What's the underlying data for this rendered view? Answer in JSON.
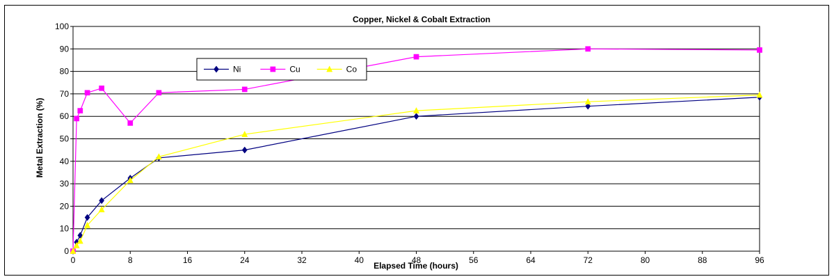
{
  "chart_data": {
    "type": "line",
    "title": "Copper, Nickel & Cobalt Extraction",
    "xlabel": "Elapsed Time (hours)",
    "ylabel": "Metal Extraction (%)",
    "xlim": [
      0,
      96
    ],
    "ylim": [
      0,
      100
    ],
    "xticks": [
      0,
      8,
      16,
      24,
      32,
      40,
      48,
      56,
      64,
      72,
      80,
      88,
      96
    ],
    "yticks": [
      0,
      10,
      20,
      30,
      40,
      50,
      60,
      70,
      80,
      90,
      100
    ],
    "grid": "vertical",
    "legend_placement": "top-left",
    "series": [
      {
        "name": "Ni",
        "color": "#000080",
        "marker": "diamond",
        "x": [
          0,
          0.5,
          1,
          2,
          4,
          8,
          12,
          24,
          48,
          72,
          96
        ],
        "y": [
          0,
          4,
          7,
          15,
          22.5,
          32.5,
          41.5,
          45,
          60,
          64.5,
          68.5
        ]
      },
      {
        "name": "Cu",
        "color": "#ff00ff",
        "marker": "square",
        "x": [
          0,
          0.5,
          1,
          2,
          4,
          8,
          12,
          24,
          48,
          72,
          96
        ],
        "y": [
          0,
          59,
          62.5,
          70.5,
          72.5,
          57,
          70.5,
          72,
          86.5,
          90,
          89.5
        ]
      },
      {
        "name": "Co",
        "color": "#ffff00",
        "marker": "triangle",
        "x": [
          0,
          0.5,
          1,
          2,
          4,
          8,
          12,
          24,
          48,
          72,
          96
        ],
        "y": [
          0,
          2.5,
          4.5,
          11.5,
          18.5,
          31.5,
          42,
          52,
          62.5,
          66.5,
          69.5
        ]
      }
    ]
  }
}
